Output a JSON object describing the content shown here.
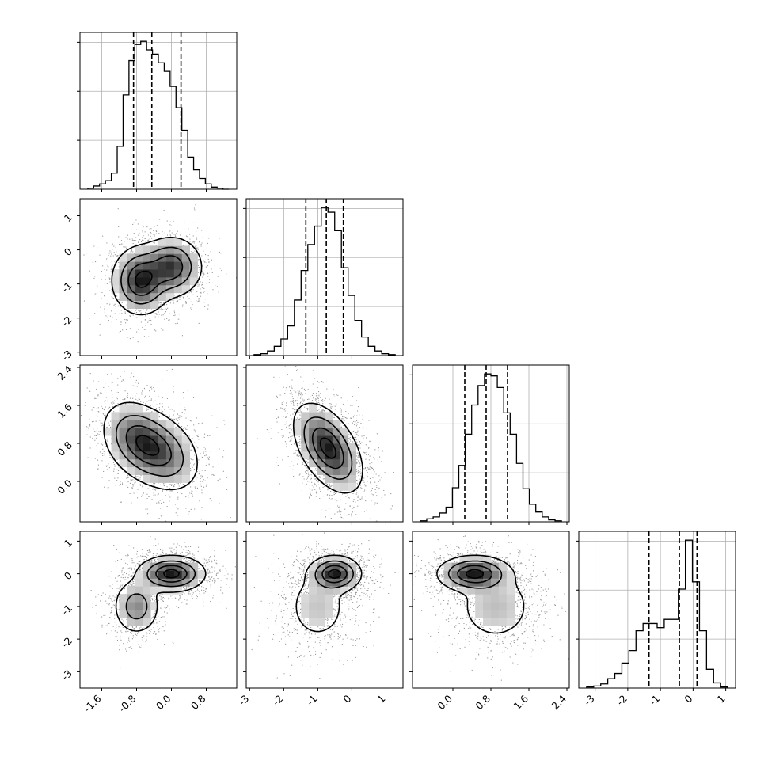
{
  "chart_data": {
    "type": "corner",
    "grid": true,
    "parameters": [
      {
        "name": "",
        "range": [
          -2.1,
          1.5
        ],
        "ticks": [
          "-1.6",
          "-0.8",
          "0.0",
          "0.8"
        ],
        "quantiles": [
          -0.87,
          -0.45,
          0.22
        ],
        "hist": [
          1,
          3,
          5,
          8,
          15,
          40,
          88,
          120,
          135,
          138,
          130,
          126,
          118,
          110,
          96,
          76,
          55,
          30,
          18,
          10,
          5,
          2,
          1,
          0
        ]
      },
      {
        "name": "",
        "range": [
          -3.1,
          1.5
        ],
        "ticks": [
          "-3",
          "-2",
          "-1",
          "0",
          "1"
        ],
        "quantiles": [
          -1.35,
          -0.75,
          -0.25
        ],
        "hist": [
          1,
          2,
          5,
          10,
          18,
          32,
          60,
          92,
          120,
          140,
          160,
          155,
          135,
          95,
          65,
          38,
          20,
          10,
          5,
          2,
          1
        ]
      },
      {
        "name": "",
        "range": [
          -0.85,
          2.45
        ],
        "ticks": [
          "0.0",
          "0.8",
          "1.6",
          "2.4"
        ],
        "quantiles": [
          0.25,
          0.7,
          1.15
        ],
        "hist": [
          1,
          3,
          5,
          9,
          15,
          35,
          58,
          90,
          120,
          140,
          152,
          150,
          138,
          112,
          90,
          60,
          34,
          18,
          10,
          5,
          2,
          1
        ]
      },
      {
        "name": "",
        "range": [
          -3.5,
          1.3
        ],
        "ticks": [
          "-3",
          "-2",
          "-1",
          "0",
          "1"
        ],
        "quantiles": [
          -1.35,
          -0.42,
          0.12
        ],
        "hist": [
          1,
          2,
          4,
          9,
          14,
          24,
          36,
          55,
          62,
          62,
          58,
          66,
          66,
          95,
          142,
          102,
          55,
          18,
          5,
          1
        ]
      }
    ],
    "pairs": [
      {
        "row": 1,
        "col": 0,
        "blobs": [
          {
            "cx": -0.7,
            "cy": -0.9,
            "sx": 0.3,
            "sy": 0.45,
            "w": 0.55
          },
          {
            "cx": 0.0,
            "cy": -0.5,
            "sx": 0.32,
            "sy": 0.4,
            "w": 0.45
          }
        ],
        "corr": 0.0
      },
      {
        "row": 2,
        "col": 0,
        "blobs": [
          {
            "cx": -0.75,
            "cy": 0.85,
            "sx": 0.38,
            "sy": 0.38,
            "w": 0.55
          },
          {
            "cx": -0.2,
            "cy": 0.6,
            "sx": 0.4,
            "sy": 0.38,
            "w": 0.45
          }
        ],
        "corr": -0.3
      },
      {
        "row": 2,
        "col": 1,
        "blobs": [
          {
            "cx": -0.7,
            "cy": 0.7,
            "sx": 0.45,
            "sy": 0.42,
            "w": 1.0
          }
        ],
        "corr": -0.5
      },
      {
        "row": 3,
        "col": 0,
        "blobs": [
          {
            "cx": 0.0,
            "cy": 0.0,
            "sx": 0.35,
            "sy": 0.25,
            "w": 0.65
          },
          {
            "cx": -0.8,
            "cy": -1.0,
            "sx": 0.25,
            "sy": 0.4,
            "w": 0.35
          }
        ],
        "corr": 0.0
      },
      {
        "row": 3,
        "col": 1,
        "blobs": [
          {
            "cx": -0.5,
            "cy": 0.0,
            "sx": 0.35,
            "sy": 0.25,
            "w": 0.62
          },
          {
            "cx": -1.0,
            "cy": -1.0,
            "sx": 0.45,
            "sy": 0.55,
            "w": 0.38
          }
        ],
        "corr": 0.0
      },
      {
        "row": 3,
        "col": 2,
        "blobs": [
          {
            "cx": 0.45,
            "cy": 0.0,
            "sx": 0.35,
            "sy": 0.25,
            "w": 0.62
          },
          {
            "cx": 0.9,
            "cy": -1.0,
            "sx": 0.4,
            "sy": 0.55,
            "w": 0.38
          }
        ],
        "corr": 0.0
      }
    ],
    "histogram_y_ticks": 3
  }
}
